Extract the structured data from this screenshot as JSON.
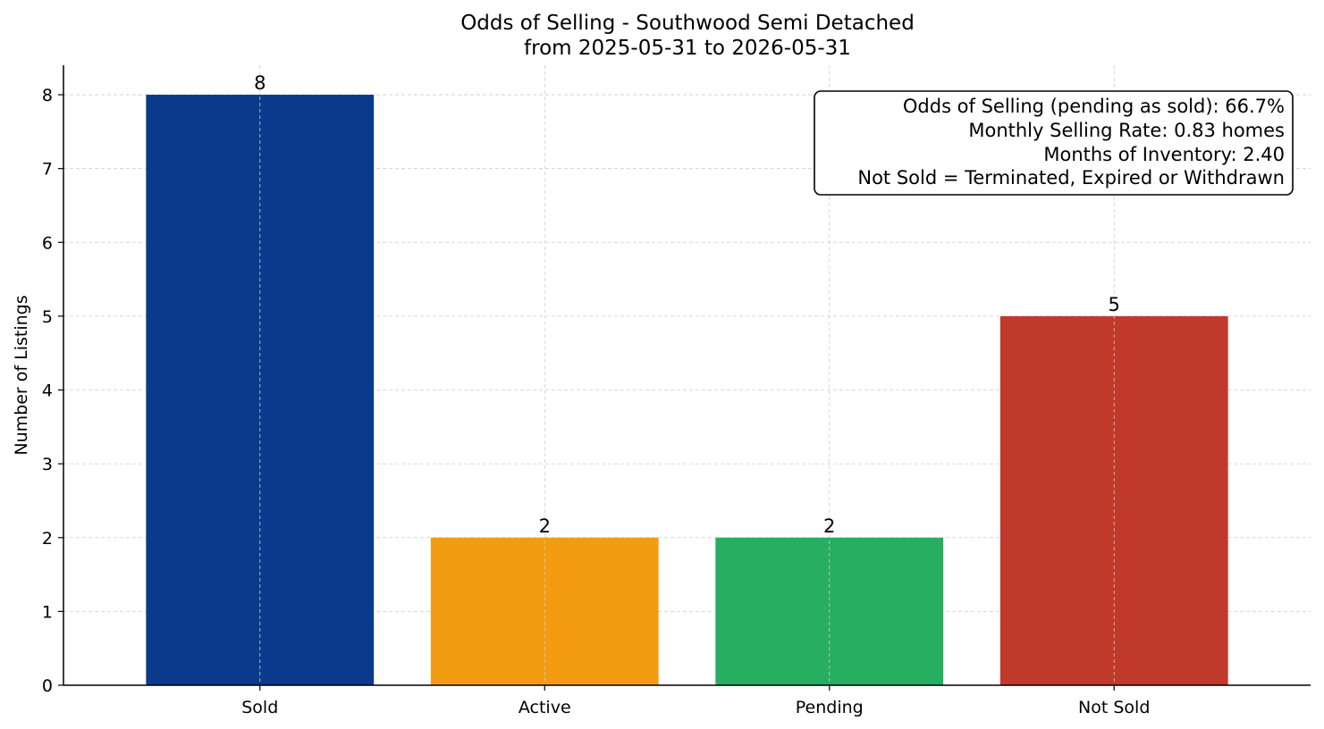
{
  "chart_data": {
    "type": "bar",
    "title": [
      "Odds of Selling - Southwood Semi Detached",
      "from 2025-05-31 to 2026-05-31"
    ],
    "xlabel": "",
    "ylabel": "Number of Listings",
    "categories": [
      "Sold",
      "Active",
      "Pending",
      "Not Sold"
    ],
    "values": [
      8,
      2,
      2,
      5
    ],
    "colors": [
      "#0b3a8c",
      "#f39c12",
      "#27ae60",
      "#c0392b"
    ],
    "ylim": [
      0,
      8.4
    ],
    "yticks": [
      0,
      1,
      2,
      3,
      4,
      5,
      6,
      7,
      8
    ],
    "grid": true,
    "info_box": {
      "placement": "top-right",
      "lines": [
        "Odds of Selling (pending as sold): 66.7%",
        "Monthly Selling Rate: 0.83 homes",
        "Months of Inventory: 2.40",
        "Not Sold = Terminated, Expired or Withdrawn"
      ]
    }
  }
}
